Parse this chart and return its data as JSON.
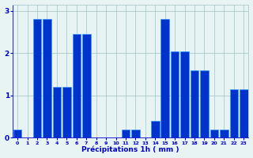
{
  "values": [
    0.2,
    0.0,
    2.8,
    2.8,
    1.2,
    1.2,
    2.45,
    2.45,
    0.0,
    0.0,
    0.0,
    0.2,
    0.2,
    0.0,
    0.4,
    2.8,
    2.05,
    2.05,
    1.6,
    1.6,
    0.2,
    0.2,
    1.15,
    1.15
  ],
  "bar_color": "#0033cc",
  "bar_edge_color": "#3399ff",
  "background_color": "#e8f4f4",
  "grid_color": "#aacccc",
  "xlabel": "Précipitations 1h ( mm )",
  "xlabel_color": "#0000cc",
  "tick_color": "#0000cc",
  "ylim": [
    0,
    3.15
  ],
  "yticks": [
    0,
    1,
    2,
    3
  ],
  "num_hours": 24
}
